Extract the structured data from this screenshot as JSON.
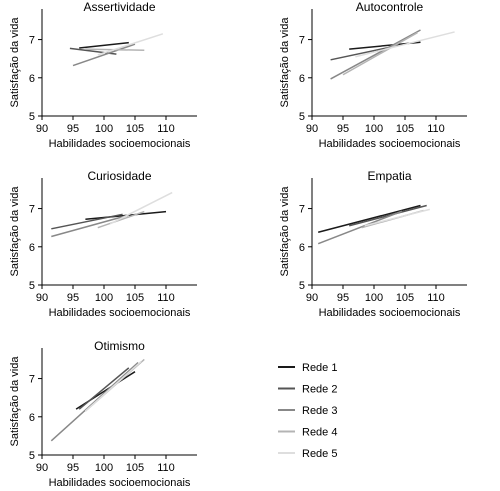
{
  "chart_data": [
    {
      "type": "line",
      "title": "Assertividade",
      "xlabel": "Habilidades socioemocionais",
      "ylabel": "Satisfação da vida",
      "xlim": [
        90,
        115
      ],
      "ylim": [
        5,
        7.8
      ],
      "xticks": [
        "90",
        "95",
        "100",
        "105",
        "110"
      ],
      "yticks": [
        "5",
        "6",
        "7"
      ],
      "series": [
        {
          "name": "Rede 1",
          "x": [
            96,
            104
          ],
          "y": [
            6.78,
            6.92
          ]
        },
        {
          "name": "Rede 2",
          "x": [
            94.5,
            102
          ],
          "y": [
            6.77,
            6.62
          ]
        },
        {
          "name": "Rede 3",
          "x": [
            95,
            105
          ],
          "y": [
            6.32,
            6.88
          ]
        },
        {
          "name": "Rede 4",
          "x": [
            97,
            106.5
          ],
          "y": [
            6.75,
            6.72
          ]
        },
        {
          "name": "Rede 5",
          "x": [
            99,
            109.5
          ],
          "y": [
            6.6,
            7.15
          ]
        }
      ]
    },
    {
      "type": "line",
      "title": "Autocontrole",
      "xlabel": "Habilidades socioemocionais",
      "ylabel": "Satisfação da vida",
      "xlim": [
        90,
        115
      ],
      "ylim": [
        5,
        7.8
      ],
      "xticks": [
        "90",
        "95",
        "100",
        "105",
        "110"
      ],
      "yticks": [
        "5",
        "6",
        "7"
      ],
      "series": [
        {
          "name": "Rede 1",
          "x": [
            96,
            107.5
          ],
          "y": [
            6.75,
            6.93
          ]
        },
        {
          "name": "Rede 2",
          "x": [
            93,
            104
          ],
          "y": [
            6.47,
            6.85
          ]
        },
        {
          "name": "Rede 3",
          "x": [
            93,
            107.5
          ],
          "y": [
            5.97,
            7.25
          ]
        },
        {
          "name": "Rede 4",
          "x": [
            95,
            107
          ],
          "y": [
            6.08,
            7.18
          ]
        },
        {
          "name": "Rede 5",
          "x": [
            97,
            113
          ],
          "y": [
            6.55,
            7.2
          ]
        }
      ]
    },
    {
      "type": "line",
      "title": "Curiosidade",
      "xlabel": "Habilidades socioemocionais",
      "ylabel": "Satisfação da vida",
      "xlim": [
        90,
        115
      ],
      "ylim": [
        5,
        7.8
      ],
      "xticks": [
        "90",
        "95",
        "100",
        "105",
        "110"
      ],
      "yticks": [
        "5",
        "6",
        "7"
      ],
      "series": [
        {
          "name": "Rede 1",
          "x": [
            97,
            110
          ],
          "y": [
            6.72,
            6.92
          ]
        },
        {
          "name": "Rede 2",
          "x": [
            91.5,
            103
          ],
          "y": [
            6.47,
            6.85
          ]
        },
        {
          "name": "Rede 3",
          "x": [
            91.5,
            104
          ],
          "y": [
            6.27,
            6.83
          ]
        },
        {
          "name": "Rede 4",
          "x": [
            99,
            106.5
          ],
          "y": [
            6.5,
            6.92
          ]
        },
        {
          "name": "Rede 5",
          "x": [
            101,
            111
          ],
          "y": [
            6.6,
            7.42
          ]
        }
      ]
    },
    {
      "type": "line",
      "title": "Empatia",
      "xlabel": "Habilidades socioemocionais",
      "ylabel": "Satisfação da vida",
      "xlim": [
        90,
        115
      ],
      "ylim": [
        5,
        7.8
      ],
      "xticks": [
        "90",
        "95",
        "100",
        "105",
        "110"
      ],
      "yticks": [
        "5",
        "6",
        "7"
      ],
      "series": [
        {
          "name": "Rede 1",
          "x": [
            91,
            107.5
          ],
          "y": [
            6.38,
            7.08
          ]
        },
        {
          "name": "Rede 2",
          "x": [
            96,
            108.5
          ],
          "y": [
            6.55,
            7.08
          ]
        },
        {
          "name": "Rede 3",
          "x": [
            91,
            104.5
          ],
          "y": [
            6.08,
            6.93
          ]
        },
        {
          "name": "Rede 4",
          "x": [
            98,
            108
          ],
          "y": [
            6.5,
            6.95
          ]
        },
        {
          "name": "Rede 5",
          "x": [
            98.5,
            109
          ],
          "y": [
            6.55,
            6.98
          ]
        }
      ]
    },
    {
      "type": "line",
      "title": "Otimismo",
      "xlabel": "Habilidades socioemocionais",
      "ylabel": "Satisfação da vida",
      "xlim": [
        90,
        115
      ],
      "ylim": [
        5,
        7.8
      ],
      "xticks": [
        "90",
        "95",
        "100",
        "105",
        "110"
      ],
      "yticks": [
        "5",
        "6",
        "7"
      ],
      "series": [
        {
          "name": "Rede 1",
          "x": [
            95.5,
            105
          ],
          "y": [
            6.2,
            7.18
          ]
        },
        {
          "name": "Rede 2",
          "x": [
            96,
            104
          ],
          "y": [
            6.2,
            7.28
          ]
        },
        {
          "name": "Rede 3",
          "x": [
            91.5,
            105.5
          ],
          "y": [
            5.37,
            7.42
          ]
        },
        {
          "name": "Rede 4",
          "x": [
            97,
            106.5
          ],
          "y": [
            6.15,
            7.5
          ]
        },
        {
          "name": "Rede 5",
          "x": [
            97,
            106
          ],
          "y": [
            6.15,
            7.45
          ]
        }
      ]
    }
  ],
  "legend": {
    "placement": "bottom-right",
    "items": [
      {
        "label": "Rede 1",
        "color": "#1a1a1a"
      },
      {
        "label": "Rede 2",
        "color": "#555555"
      },
      {
        "label": "Rede 3",
        "color": "#888888"
      },
      {
        "label": "Rede 4",
        "color": "#b4b4b4"
      },
      {
        "label": "Rede 5",
        "color": "#dedede"
      }
    ]
  }
}
